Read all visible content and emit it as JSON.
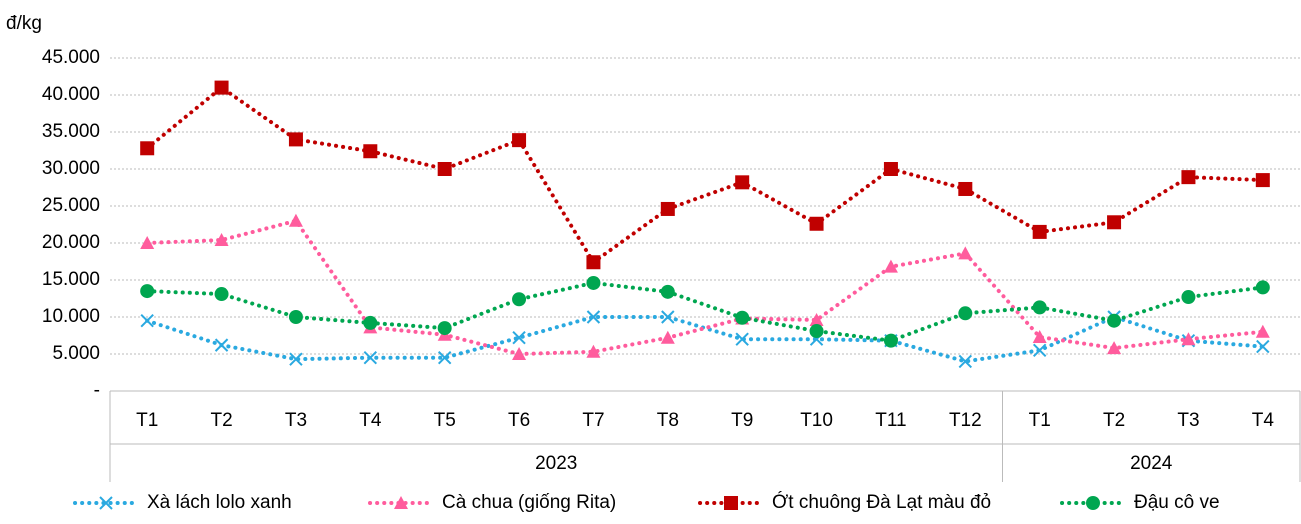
{
  "chart_data": {
    "type": "line",
    "y_label": "đ/kg",
    "categories": [
      "T1",
      "T2",
      "T3",
      "T4",
      "T5",
      "T6",
      "T7",
      "T8",
      "T9",
      "T10",
      "T11",
      "T12",
      "T1",
      "T2",
      "T3",
      "T4"
    ],
    "groups": [
      {
        "label": "2023",
        "span": 12
      },
      {
        "label": "2024",
        "span": 4
      }
    ],
    "ylim": [
      0,
      45000
    ],
    "yticks": [
      {
        "value": 0,
        "label": "-"
      },
      {
        "value": 5000,
        "label": "5.000"
      },
      {
        "value": 10000,
        "label": "10.000"
      },
      {
        "value": 15000,
        "label": "15.000"
      },
      {
        "value": 20000,
        "label": "20.000"
      },
      {
        "value": 25000,
        "label": "25.000"
      },
      {
        "value": 30000,
        "label": "30.000"
      },
      {
        "value": 35000,
        "label": "35.000"
      },
      {
        "value": 40000,
        "label": "40.000"
      },
      {
        "value": 45000,
        "label": "45.000"
      }
    ],
    "grid": true,
    "legend": "bottom",
    "series": [
      {
        "name": "Xà lách lolo xanh",
        "color": "#2aa9e0",
        "marker": "x",
        "values": [
          9500,
          6200,
          4300,
          4500,
          4500,
          7200,
          10000,
          10000,
          7000,
          7000,
          6800,
          4000,
          5500,
          10000,
          6800,
          6000
        ]
      },
      {
        "name": "Cà chua (giống Rita)",
        "color": "#ff5c9d",
        "marker": "triangle",
        "values": [
          20000,
          20400,
          23000,
          8600,
          7600,
          5000,
          5300,
          7200,
          9800,
          9600,
          16800,
          18600,
          7300,
          5800,
          7000,
          8000
        ]
      },
      {
        "name": "Ớt chuông Đà Lạt màu đỏ",
        "color": "#c00000",
        "marker": "square",
        "values": [
          32800,
          41000,
          34000,
          32400,
          30000,
          33900,
          17400,
          24600,
          28200,
          22600,
          30000,
          27300,
          21500,
          22800,
          28900,
          28500
        ]
      },
      {
        "name": "Đậu cô ve",
        "color": "#00a650",
        "marker": "circle",
        "values": [
          13500,
          13100,
          10000,
          9200,
          8500,
          12400,
          14600,
          13400,
          9900,
          8100,
          6800,
          10500,
          11300,
          9500,
          12700,
          14000
        ]
      }
    ]
  }
}
